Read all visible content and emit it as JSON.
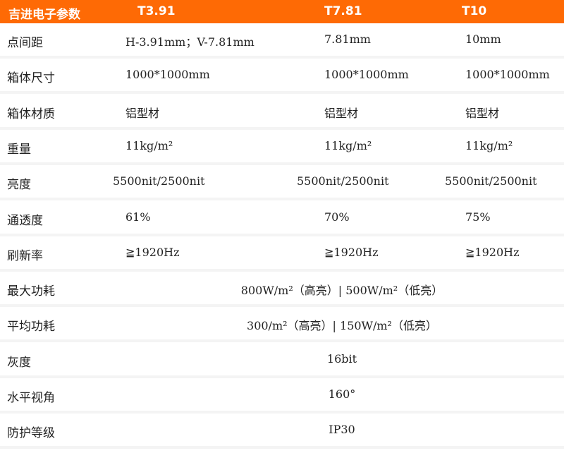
{
  "header": {
    "title": "吉进电子参数",
    "models": [
      "T3.91",
      "T7.81",
      "T10"
    ],
    "color": "#fe6a05"
  },
  "rows": [
    {
      "label": "点间距",
      "values": [
        "H-3.91mm；V-7.81mm",
        "7.81mm",
        "10mm"
      ]
    },
    {
      "label": "箱体尺寸",
      "values": [
        "1000*1000mm",
        "1000*1000mm",
        "1000*1000mm"
      ]
    },
    {
      "label": "箱体材质",
      "values": [
        "铝型材",
        "铝型材",
        "铝型材"
      ]
    },
    {
      "label": "重量",
      "values": [
        "11kg/m²",
        "11kg/m²",
        "11kg/m²"
      ]
    },
    {
      "label": "亮度",
      "values": [
        "5500nit/2500nit",
        "5500nit/2500nit",
        "5500nit/2500nit"
      ]
    },
    {
      "label": "通透度",
      "values": [
        "61%",
        "70%",
        "75%"
      ]
    },
    {
      "label": "刷新率",
      "values": [
        "≧1920Hz",
        "≧1920Hz",
        "≧1920Hz"
      ]
    },
    {
      "label": "最大功耗",
      "value": "800W/m²（高亮）| 500W/m²（低亮）"
    },
    {
      "label": "平均功耗",
      "value": "300/m²（高亮）| 150W/m²（低亮）"
    },
    {
      "label": "灰度",
      "value": "16bit"
    },
    {
      "label": "水平视角",
      "value": "160°"
    },
    {
      "label": "防护等级",
      "value": "IP30"
    }
  ]
}
